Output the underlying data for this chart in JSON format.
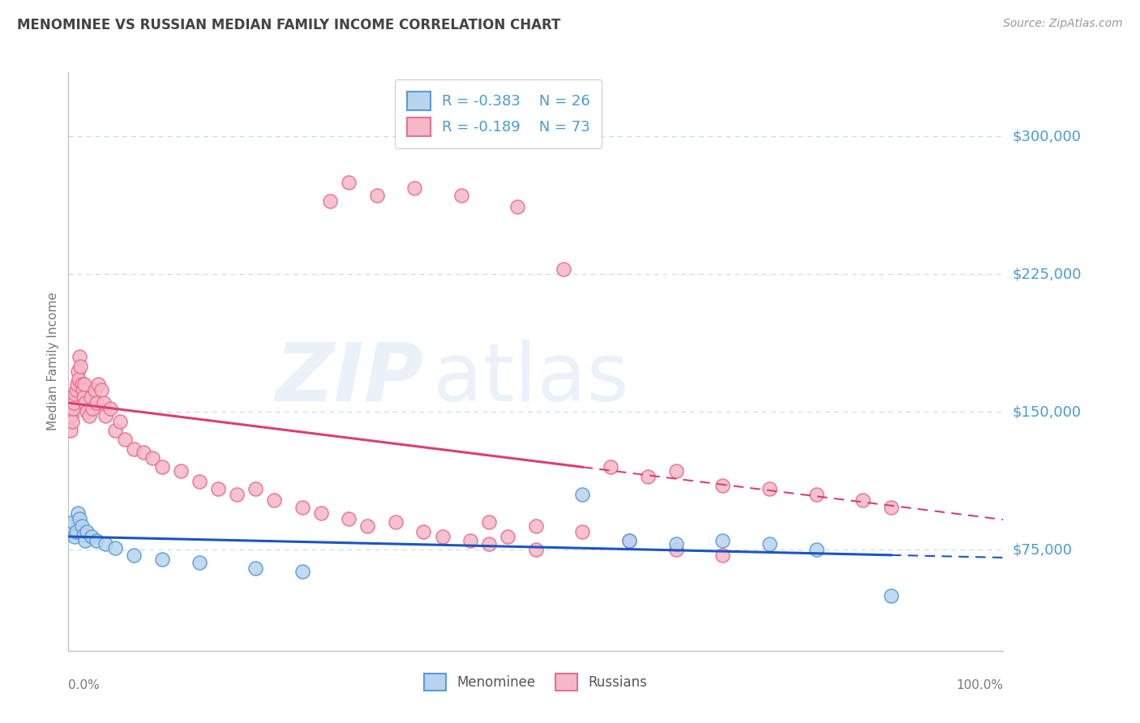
{
  "title": "MENOMINEE VS RUSSIAN MEDIAN FAMILY INCOME CORRELATION CHART",
  "source_text": "Source: ZipAtlas.com",
  "ylabel": "Median Family Income",
  "yticks": [
    75000,
    150000,
    225000,
    300000
  ],
  "ytick_labels": [
    "$75,000",
    "$150,000",
    "$225,000",
    "$300,000"
  ],
  "ylim": [
    20000,
    335000
  ],
  "xlim": [
    0.0,
    100.0
  ],
  "menominee_color": "#5b9bd5",
  "menominee_fill": "#b8d4ee",
  "russian_color": "#e87090",
  "russian_fill": "#f5b8c8",
  "trend_blue": "#1a56c4",
  "trend_pink": "#d94070",
  "axis_label_color": "#4a9ad4",
  "title_color": "#444444",
  "background_color": "#ffffff",
  "grid_color": "#c8d8e8",
  "menominee_x": [
    0.3,
    0.5,
    0.7,
    0.8,
    1.0,
    1.2,
    1.4,
    1.6,
    1.8,
    2.0,
    2.5,
    3.0,
    4.0,
    5.0,
    7.0,
    10.0,
    14.0,
    20.0,
    25.0,
    55.0,
    60.0,
    65.0,
    70.0,
    75.0,
    80.0,
    88.0
  ],
  "menominee_y": [
    88000,
    90000,
    82000,
    85000,
    95000,
    92000,
    88000,
    83000,
    80000,
    85000,
    82000,
    80000,
    78000,
    76000,
    72000,
    70000,
    68000,
    65000,
    63000,
    105000,
    80000,
    78000,
    80000,
    78000,
    75000,
    50000
  ],
  "russian_x": [
    0.2,
    0.3,
    0.4,
    0.5,
    0.6,
    0.7,
    0.8,
    0.9,
    1.0,
    1.1,
    1.2,
    1.3,
    1.4,
    1.5,
    1.6,
    1.7,
    1.8,
    2.0,
    2.2,
    2.4,
    2.6,
    2.8,
    3.0,
    3.2,
    3.5,
    3.8,
    4.0,
    4.5,
    5.0,
    5.5,
    6.0,
    7.0,
    8.0,
    9.0,
    10.0,
    12.0,
    14.0,
    16.0,
    18.0,
    20.0,
    22.0,
    25.0,
    27.0,
    30.0,
    32.0,
    35.0,
    38.0,
    40.0,
    43.0,
    45.0,
    47.0,
    50.0,
    28.0,
    30.0,
    33.0,
    37.0,
    42.0,
    48.0,
    53.0,
    58.0,
    62.0,
    65.0,
    70.0,
    75.0,
    80.0,
    85.0,
    88.0,
    45.0,
    50.0,
    55.0,
    60.0,
    65.0,
    70.0
  ],
  "russian_y": [
    140000,
    148000,
    145000,
    152000,
    155000,
    160000,
    162000,
    165000,
    172000,
    168000,
    180000,
    175000,
    165000,
    162000,
    158000,
    165000,
    155000,
    150000,
    148000,
    158000,
    152000,
    162000,
    155000,
    165000,
    162000,
    155000,
    148000,
    152000,
    140000,
    145000,
    135000,
    130000,
    128000,
    125000,
    120000,
    118000,
    112000,
    108000,
    105000,
    108000,
    102000,
    98000,
    95000,
    92000,
    88000,
    90000,
    85000,
    82000,
    80000,
    78000,
    82000,
    75000,
    265000,
    275000,
    268000,
    272000,
    268000,
    262000,
    228000,
    120000,
    115000,
    118000,
    110000,
    108000,
    105000,
    102000,
    98000,
    90000,
    88000,
    85000,
    80000,
    75000,
    72000
  ]
}
